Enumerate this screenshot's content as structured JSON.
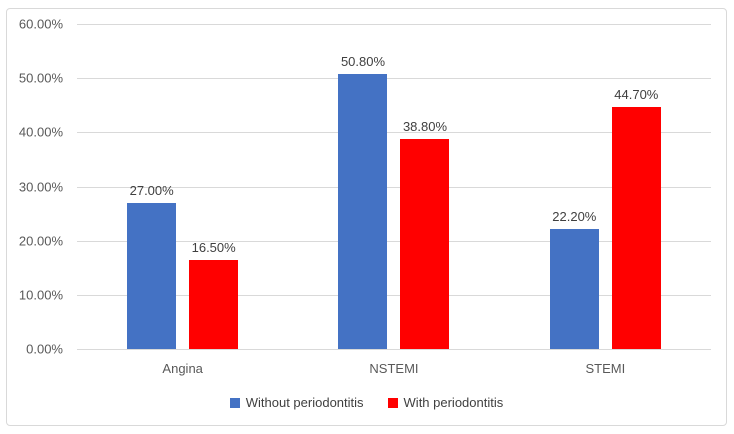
{
  "chart_data": {
    "type": "bar",
    "title": "",
    "xlabel": "",
    "ylabel": "",
    "categories": [
      "Angina",
      "NSTEMI",
      "STEMI"
    ],
    "series": [
      {
        "name": "Without periodontitis",
        "color": "#4472C4",
        "values": [
          27.0,
          50.8,
          22.2
        ]
      },
      {
        "name": "With periodontitis",
        "color": "#FF0000",
        "values": [
          16.5,
          38.8,
          44.7
        ]
      }
    ],
    "data_labels": [
      [
        "27.00%",
        "50.80%",
        "22.20%"
      ],
      [
        "16.50%",
        "38.80%",
        "44.70%"
      ]
    ],
    "y_axis": {
      "min": 0,
      "max": 60,
      "step": 10,
      "tick_labels": [
        "0.00%",
        "10.00%",
        "20.00%",
        "30.00%",
        "40.00%",
        "50.00%",
        "60.00%"
      ]
    },
    "grid": true,
    "legend_position": "bottom",
    "colors": {
      "gridline": "#D9D9D9",
      "frame_border": "#D9D9D9",
      "axis_text": "#595959",
      "label_text": "#404040",
      "background": "#FFFFFF"
    }
  }
}
